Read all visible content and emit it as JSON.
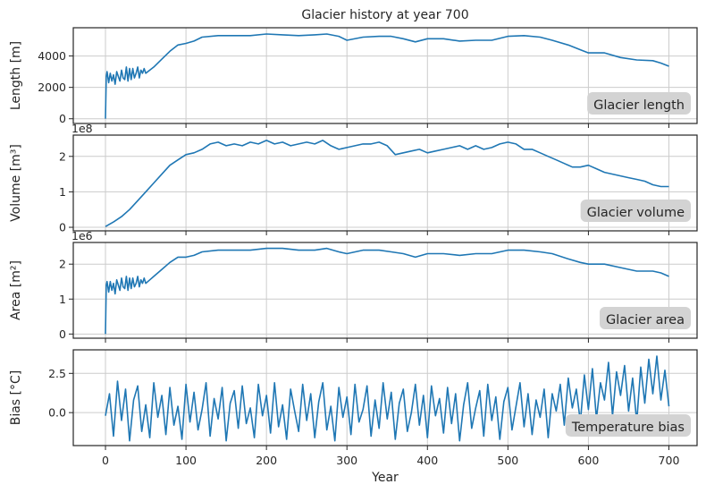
{
  "figure": {
    "title": "Glacier history at year 700",
    "xlabel": "Year",
    "x_ticks": [
      0,
      100,
      200,
      300,
      400,
      500,
      600,
      700
    ],
    "xlim": [
      -40,
      735
    ],
    "line_color": "#1f77b4",
    "grid_color": "#cccccc",
    "label_box_color": "#d3d3d3"
  },
  "chart_data": [
    {
      "type": "line",
      "ylabel": "Length [m]",
      "annotation": "Glacier length",
      "offset_text": "",
      "ylim": [
        -300,
        5800
      ],
      "y_ticks": [
        0,
        2000,
        4000
      ],
      "y_tick_labels": [
        "0",
        "2000",
        "4000"
      ],
      "x": [
        0,
        1,
        2,
        4,
        6,
        8,
        10,
        12,
        14,
        16,
        18,
        20,
        22,
        24,
        26,
        28,
        30,
        32,
        34,
        36,
        38,
        40,
        42,
        44,
        46,
        48,
        50,
        55,
        60,
        70,
        80,
        90,
        100,
        110,
        120,
        140,
        160,
        180,
        200,
        220,
        240,
        260,
        275,
        290,
        300,
        320,
        340,
        355,
        370,
        385,
        400,
        420,
        440,
        460,
        480,
        500,
        520,
        540,
        555,
        575,
        590,
        600,
        620,
        640,
        660,
        680,
        690,
        700
      ],
      "y": [
        0,
        2700,
        3000,
        2300,
        2900,
        2400,
        2800,
        2200,
        3000,
        2700,
        2400,
        3100,
        2600,
        2500,
        3300,
        2400,
        3200,
        2500,
        3200,
        2600,
        2900,
        3300,
        2600,
        3100,
        2900,
        3200,
        2900,
        3100,
        3300,
        3800,
        4300,
        4700,
        4800,
        4950,
        5200,
        5300,
        5300,
        5300,
        5400,
        5350,
        5300,
        5350,
        5400,
        5250,
        5000,
        5200,
        5250,
        5250,
        5100,
        4900,
        5100,
        5100,
        4950,
        5000,
        5000,
        5250,
        5300,
        5200,
        5000,
        4700,
        4400,
        4200,
        4200,
        3900,
        3750,
        3700,
        3550,
        3350
      ]
    },
    {
      "type": "line",
      "ylabel": "Volume [m³]",
      "annotation": "Glacier volume",
      "offset_text": "1e8",
      "ylim": [
        -0.1,
        2.6
      ],
      "y_ticks": [
        0,
        1,
        2
      ],
      "y_tick_labels": [
        "0",
        "1",
        "2"
      ],
      "x": [
        0,
        10,
        20,
        30,
        40,
        50,
        60,
        70,
        80,
        90,
        100,
        110,
        120,
        130,
        140,
        150,
        160,
        170,
        180,
        190,
        200,
        210,
        220,
        230,
        240,
        250,
        260,
        270,
        280,
        290,
        300,
        310,
        320,
        330,
        340,
        350,
        360,
        370,
        380,
        390,
        400,
        410,
        420,
        430,
        440,
        450,
        460,
        470,
        480,
        490,
        500,
        510,
        520,
        530,
        540,
        550,
        560,
        570,
        580,
        590,
        600,
        610,
        620,
        630,
        640,
        650,
        660,
        670,
        680,
        690,
        700
      ],
      "y": [
        0.02,
        0.15,
        0.3,
        0.5,
        0.75,
        1.0,
        1.25,
        1.5,
        1.75,
        1.9,
        2.05,
        2.1,
        2.2,
        2.35,
        2.4,
        2.3,
        2.35,
        2.3,
        2.4,
        2.35,
        2.45,
        2.35,
        2.4,
        2.3,
        2.35,
        2.4,
        2.35,
        2.45,
        2.3,
        2.2,
        2.25,
        2.3,
        2.35,
        2.35,
        2.4,
        2.3,
        2.05,
        2.1,
        2.15,
        2.2,
        2.1,
        2.15,
        2.2,
        2.25,
        2.3,
        2.2,
        2.3,
        2.2,
        2.25,
        2.35,
        2.4,
        2.35,
        2.2,
        2.2,
        2.1,
        2.0,
        1.9,
        1.8,
        1.7,
        1.7,
        1.75,
        1.65,
        1.55,
        1.5,
        1.45,
        1.4,
        1.35,
        1.3,
        1.2,
        1.15,
        1.15
      ]
    },
    {
      "type": "line",
      "ylabel": "Area [m²]",
      "annotation": "Glacier area",
      "offset_text": "1e6",
      "ylim": [
        -0.12,
        2.62
      ],
      "y_ticks": [
        0,
        1,
        2
      ],
      "y_tick_labels": [
        "0",
        "1",
        "2"
      ],
      "x": [
        0,
        1,
        2,
        4,
        6,
        8,
        10,
        12,
        14,
        16,
        18,
        20,
        22,
        24,
        26,
        28,
        30,
        32,
        34,
        36,
        38,
        40,
        42,
        44,
        46,
        48,
        50,
        55,
        60,
        70,
        80,
        90,
        100,
        110,
        120,
        140,
        160,
        180,
        200,
        220,
        240,
        260,
        275,
        290,
        300,
        320,
        340,
        355,
        370,
        385,
        400,
        420,
        440,
        460,
        480,
        500,
        520,
        540,
        555,
        575,
        590,
        600,
        620,
        640,
        660,
        680,
        690,
        700
      ],
      "y": [
        0,
        1.4,
        1.5,
        1.2,
        1.5,
        1.25,
        1.45,
        1.15,
        1.55,
        1.4,
        1.25,
        1.6,
        1.35,
        1.3,
        1.65,
        1.25,
        1.6,
        1.3,
        1.6,
        1.35,
        1.45,
        1.65,
        1.35,
        1.55,
        1.45,
        1.6,
        1.45,
        1.55,
        1.65,
        1.85,
        2.05,
        2.2,
        2.2,
        2.25,
        2.35,
        2.4,
        2.4,
        2.4,
        2.45,
        2.45,
        2.4,
        2.4,
        2.45,
        2.35,
        2.3,
        2.4,
        2.4,
        2.35,
        2.3,
        2.2,
        2.3,
        2.3,
        2.25,
        2.3,
        2.3,
        2.4,
        2.4,
        2.35,
        2.3,
        2.15,
        2.05,
        2.0,
        2.0,
        1.9,
        1.8,
        1.8,
        1.75,
        1.65
      ]
    },
    {
      "type": "line",
      "ylabel": "Bias [°C]",
      "annotation": "Temperature bias",
      "offset_text": "",
      "ylim": [
        -2.1,
        4.0
      ],
      "y_ticks": [
        0,
        2.5
      ],
      "y_tick_labels": [
        "0.0",
        "2.5"
      ],
      "x": [
        0,
        5,
        10,
        15,
        20,
        25,
        30,
        35,
        40,
        45,
        50,
        55,
        60,
        65,
        70,
        75,
        80,
        85,
        90,
        95,
        100,
        105,
        110,
        115,
        120,
        125,
        130,
        135,
        140,
        145,
        150,
        155,
        160,
        165,
        170,
        175,
        180,
        185,
        190,
        195,
        200,
        205,
        210,
        215,
        220,
        225,
        230,
        235,
        240,
        245,
        250,
        255,
        260,
        265,
        270,
        275,
        280,
        285,
        290,
        295,
        300,
        305,
        310,
        315,
        320,
        325,
        330,
        335,
        340,
        345,
        350,
        355,
        360,
        365,
        370,
        375,
        380,
        385,
        390,
        395,
        400,
        405,
        410,
        415,
        420,
        425,
        430,
        435,
        440,
        445,
        450,
        455,
        460,
        465,
        470,
        475,
        480,
        485,
        490,
        495,
        500,
        505,
        510,
        515,
        520,
        525,
        530,
        535,
        540,
        545,
        550,
        555,
        560,
        565,
        570,
        575,
        580,
        585,
        590,
        595,
        600,
        605,
        610,
        615,
        620,
        625,
        630,
        635,
        640,
        645,
        650,
        655,
        660,
        665,
        670,
        675,
        680,
        685,
        690,
        695,
        700
      ],
      "y": [
        -0.2,
        1.2,
        -1.5,
        2.0,
        -0.5,
        1.5,
        -1.8,
        0.8,
        1.7,
        -1.2,
        0.5,
        -1.6,
        1.9,
        -0.3,
        1.1,
        -1.4,
        1.6,
        -0.8,
        0.4,
        -1.7,
        1.8,
        -0.6,
        1.3,
        -1.1,
        0.2,
        1.9,
        -1.5,
        0.9,
        -0.4,
        1.6,
        -1.8,
        0.6,
        1.4,
        -1.0,
        1.7,
        -0.7,
        0.3,
        -1.6,
        1.8,
        -0.2,
        1.1,
        -1.3,
        1.9,
        -0.9,
        0.5,
        -1.7,
        1.5,
        0.1,
        -1.2,
        1.8,
        -0.5,
        1.2,
        -1.6,
        0.7,
        1.9,
        -1.1,
        0.4,
        -1.8,
        1.6,
        -0.3,
        1.0,
        -1.4,
        1.8,
        -0.6,
        0.2,
        1.7,
        -1.5,
        0.8,
        -1.0,
        1.9,
        -0.4,
        1.3,
        -1.7,
        0.6,
        1.5,
        -1.2,
        0.0,
        1.8,
        -0.8,
        1.1,
        -1.6,
        1.7,
        -0.2,
        0.9,
        -1.3,
        1.6,
        -0.7,
        1.2,
        -1.8,
        0.5,
        1.9,
        -1.0,
        0.3,
        1.4,
        -1.5,
        1.8,
        -0.5,
        1.0,
        -1.7,
        0.7,
        1.6,
        -1.1,
        0.4,
        1.9,
        -0.9,
        1.2,
        -1.4,
        0.8,
        -0.3,
        1.5,
        -1.6,
        1.2,
        0.1,
        1.8,
        -0.8,
        2.2,
        0.3,
        1.5,
        -0.6,
        2.4,
        0.2,
        2.8,
        -0.4,
        1.9,
        0.8,
        3.2,
        -0.2,
        2.6,
        1.1,
        3.0,
        0.1,
        2.2,
        -0.6,
        2.9,
        0.6,
        3.4,
        1.2,
        3.6,
        0.8,
        2.7,
        0.4
      ]
    }
  ]
}
